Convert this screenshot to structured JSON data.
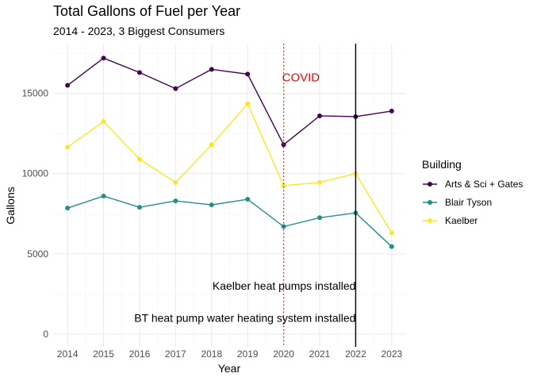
{
  "chart_data": {
    "type": "line",
    "title": "Total Gallons of Fuel per Year",
    "subtitle": "2014 - 2023, 3 Biggest Consumers",
    "xlabel": "Year",
    "ylabel": "Gallons",
    "x": [
      2014,
      2015,
      2016,
      2017,
      2018,
      2019,
      2020,
      2021,
      2022,
      2023
    ],
    "xlim": [
      2013.6,
      2023.4
    ],
    "ylim": [
      -800,
      18100
    ],
    "x_ticks": [
      "2014",
      "2015",
      "2016",
      "2017",
      "2018",
      "2019",
      "2020",
      "2021",
      "2022",
      "2023"
    ],
    "y_ticks": [
      "0",
      "5000",
      "10000",
      "15000"
    ],
    "grid": true,
    "legend_title": "Building",
    "legend_position": "right",
    "series": [
      {
        "name": "Arts & Sci + Gates",
        "color": "#440154",
        "values": [
          15500,
          17200,
          16300,
          15300,
          16500,
          16200,
          11800,
          13600,
          13550,
          13900
        ]
      },
      {
        "name": "Blair Tyson",
        "color": "#21908c",
        "values": [
          7850,
          8600,
          7900,
          8300,
          8050,
          8400,
          6700,
          7250,
          7550,
          5450
        ]
      },
      {
        "name": "Kaelber",
        "color": "#fde725",
        "values": [
          11650,
          13250,
          10900,
          9450,
          11800,
          14350,
          9250,
          9450,
          10000,
          6300
        ]
      }
    ],
    "reference_lines": [
      {
        "x": 2020,
        "label": "COVID",
        "color": "#ff0000",
        "style": "dotted",
        "label_y": 16000
      },
      {
        "x": 2022,
        "color": "#000000",
        "style": "solid"
      }
    ],
    "annotations": [
      {
        "text": "Kaelber heat pumps installed",
        "x": 2022,
        "y": 3000
      },
      {
        "text": "BT heat pump water heating system installed",
        "x": 2022,
        "y": 1000
      }
    ]
  }
}
